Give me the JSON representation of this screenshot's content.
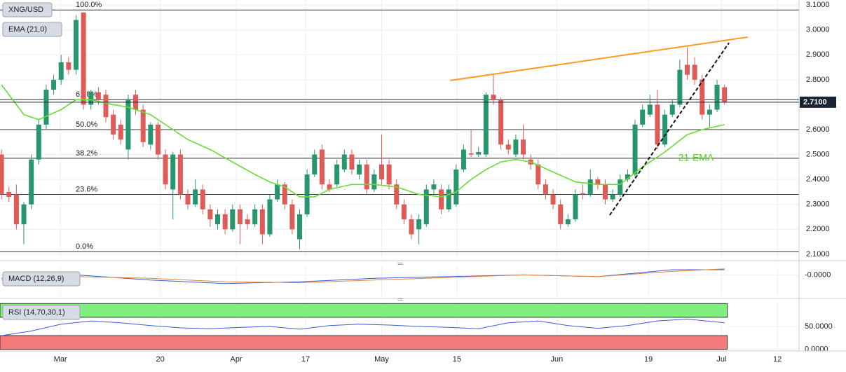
{
  "chart_data": {
    "type": "candlestick",
    "symbol": "XNG/USD",
    "up_color": "#27976b",
    "down_color": "#de5b57",
    "xlim": [
      -0.2,
      107
    ],
    "ylim": [
      2.08,
      3.12
    ],
    "xticks": [
      {
        "value": 7.9,
        "label": "Mar"
      },
      {
        "value": 21.3,
        "label": "20"
      },
      {
        "value": 31.5,
        "label": "Apr"
      },
      {
        "value": 40.8,
        "label": "17"
      },
      {
        "value": 51,
        "label": "May"
      },
      {
        "value": 61.1,
        "label": "15"
      },
      {
        "value": 74.5,
        "label": "Jun"
      },
      {
        "value": 86.8,
        "label": "19"
      },
      {
        "value": 96.6,
        "label": "Jul"
      },
      {
        "value": 104.1,
        "label": "12"
      }
    ],
    "yticks": [
      {
        "value": 3.1,
        "label": "3.1000"
      },
      {
        "value": 3.0,
        "label": "3.0000"
      },
      {
        "value": 2.9,
        "label": "2.9000"
      },
      {
        "value": 2.8,
        "label": "2.8000"
      },
      {
        "value": 2.7,
        "label": "2.7000"
      },
      {
        "value": 2.6,
        "label": "2.6000"
      },
      {
        "value": 2.5,
        "label": "2.5000"
      },
      {
        "value": 2.4,
        "label": "2.4000"
      },
      {
        "value": 2.3,
        "label": "2.3000"
      },
      {
        "value": 2.2,
        "label": "2.2000"
      },
      {
        "value": 2.1,
        "label": "2.1000"
      }
    ],
    "grid": true,
    "open": [
      2.5,
      2.35,
      2.34,
      2.22,
      2.3,
      2.48,
      2.62,
      2.76,
      2.8,
      2.87,
      2.84,
      3.07,
      2.7,
      2.75,
      2.74,
      2.66,
      2.62,
      2.52,
      2.74,
      2.68,
      2.54,
      2.62,
      2.5,
      2.36,
      2.5,
      2.34,
      2.3,
      2.36,
      2.28,
      2.22,
      2.26,
      2.2,
      2.28,
      2.24,
      2.22,
      2.28,
      2.18,
      2.32,
      2.38,
      2.3,
      2.16,
      2.26,
      2.42,
      2.52,
      2.38,
      2.38,
      2.44,
      2.5,
      2.42,
      2.46,
      2.36,
      2.46,
      2.46,
      2.38,
      2.3,
      2.24,
      2.2,
      2.22,
      2.36,
      2.36,
      2.28,
      2.3,
      2.44,
      2.505,
      2.5,
      2.5,
      2.74,
      2.72,
      2.54,
      2.5,
      2.56,
      2.48,
      2.46,
      2.38,
      2.34,
      2.3,
      2.22,
      2.24,
      2.345,
      2.34,
      2.4,
      2.38,
      2.32,
      2.34,
      2.4,
      2.42,
      2.62,
      2.66,
      2.7,
      2.54,
      2.66,
      2.7,
      2.86,
      2.86,
      2.8,
      2.66,
      2.68,
      2.77
    ],
    "high": [
      2.52,
      2.37,
      2.38,
      2.31,
      2.5,
      2.64,
      2.78,
      2.82,
      2.9,
      2.89,
      3.06,
      3.07,
      2.76,
      2.77,
      2.76,
      2.68,
      2.64,
      2.74,
      2.76,
      2.7,
      2.63,
      2.63,
      2.52,
      2.51,
      2.52,
      2.36,
      2.4,
      2.38,
      2.3,
      2.28,
      2.28,
      2.3,
      2.3,
      2.26,
      2.3,
      2.3,
      2.34,
      2.4,
      2.39,
      2.32,
      2.28,
      2.44,
      2.52,
      2.54,
      2.4,
      2.48,
      2.52,
      2.52,
      2.48,
      2.48,
      2.44,
      2.58,
      2.48,
      2.4,
      2.32,
      2.26,
      2.26,
      2.38,
      2.4,
      2.38,
      2.38,
      2.46,
      2.54,
      2.6,
      2.53,
      2.75,
      2.82,
      2.73,
      2.56,
      2.58,
      2.62,
      2.5,
      2.48,
      2.4,
      2.36,
      2.32,
      2.26,
      2.36,
      2.38,
      2.44,
      2.41,
      2.4,
      2.36,
      2.42,
      2.44,
      2.64,
      2.7,
      2.74,
      2.76,
      2.68,
      2.72,
      2.88,
      2.93,
      2.89,
      2.82,
      2.7,
      2.8,
      2.78
    ],
    "low": [
      2.32,
      2.31,
      2.2,
      2.14,
      2.28,
      2.46,
      2.6,
      2.74,
      2.78,
      2.82,
      2.82,
      2.68,
      2.68,
      2.7,
      2.63,
      2.56,
      2.54,
      2.48,
      2.66,
      2.53,
      2.52,
      2.48,
      2.36,
      2.24,
      2.32,
      2.28,
      2.29,
      2.26,
      2.21,
      2.2,
      2.18,
      2.19,
      2.14,
      2.2,
      2.21,
      2.14,
      2.17,
      2.31,
      2.28,
      2.18,
      2.12,
      2.25,
      2.41,
      2.36,
      2.35,
      2.37,
      2.43,
      2.42,
      2.4,
      2.34,
      2.35,
      2.38,
      2.36,
      2.28,
      2.22,
      2.16,
      2.14,
      2.21,
      2.34,
      2.26,
      2.27,
      2.29,
      2.43,
      2.49,
      2.49,
      2.49,
      2.7,
      2.52,
      2.5,
      2.49,
      2.48,
      2.44,
      2.36,
      2.32,
      2.28,
      2.2,
      2.21,
      2.23,
      2.32,
      2.33,
      2.36,
      2.3,
      2.31,
      2.33,
      2.39,
      2.41,
      2.61,
      2.65,
      2.52,
      2.53,
      2.65,
      2.69,
      2.8,
      2.78,
      2.64,
      2.61,
      2.67,
      2.7
    ],
    "close": [
      2.34,
      2.33,
      2.22,
      2.3,
      2.48,
      2.62,
      2.76,
      2.8,
      2.87,
      2.84,
      3.04,
      2.7,
      2.75,
      2.72,
      2.65,
      2.58,
      2.56,
      2.72,
      2.68,
      2.55,
      2.62,
      2.5,
      2.38,
      2.5,
      2.34,
      2.3,
      2.36,
      2.28,
      2.24,
      2.26,
      2.2,
      2.28,
      2.22,
      2.22,
      2.28,
      2.18,
      2.32,
      2.38,
      2.3,
      2.2,
      2.26,
      2.42,
      2.5,
      2.38,
      2.36,
      2.46,
      2.5,
      2.44,
      2.46,
      2.36,
      2.42,
      2.4,
      2.38,
      2.3,
      2.24,
      2.18,
      2.24,
      2.36,
      2.38,
      2.28,
      2.36,
      2.44,
      2.52,
      2.5,
      2.51,
      2.74,
      2.72,
      2.54,
      2.52,
      2.56,
      2.5,
      2.46,
      2.38,
      2.34,
      2.3,
      2.22,
      2.24,
      2.34,
      2.34,
      2.4,
      2.38,
      2.32,
      2.34,
      2.4,
      2.42,
      2.62,
      2.68,
      2.7,
      2.54,
      2.66,
      2.7,
      2.84,
      2.82,
      2.8,
      2.66,
      2.68,
      2.78,
      2.71
    ],
    "ema": {
      "name": "EMA (21,0)",
      "color": "#66dd33",
      "x": [
        0,
        3,
        5,
        8,
        10,
        12,
        15,
        17,
        20,
        22,
        25,
        28,
        31,
        34,
        36,
        38,
        40,
        42,
        44,
        47,
        50,
        53,
        56,
        59,
        61,
        63,
        65,
        67,
        69,
        71,
        74,
        77,
        80,
        83,
        86,
        89,
        92,
        94,
        97
      ],
      "values": [
        2.78,
        2.66,
        2.64,
        2.68,
        2.72,
        2.72,
        2.7,
        2.69,
        2.66,
        2.62,
        2.56,
        2.52,
        2.47,
        2.42,
        2.39,
        2.37,
        2.33,
        2.33,
        2.36,
        2.38,
        2.38,
        2.37,
        2.34,
        2.33,
        2.35,
        2.4,
        2.44,
        2.47,
        2.48,
        2.47,
        2.43,
        2.39,
        2.38,
        2.38,
        2.45,
        2.51,
        2.58,
        2.6,
        2.62
      ]
    },
    "fib_levels": [
      {
        "value": 3.08,
        "label": "100.0%"
      },
      {
        "value": 2.72,
        "label": "61.8%"
      },
      {
        "value": 2.6,
        "label": "50.0%"
      },
      {
        "value": 2.485,
        "label": "38.2%"
      },
      {
        "value": 2.34,
        "label": "23.6%"
      },
      {
        "value": 2.11,
        "label": "0.0%"
      }
    ],
    "trend_lines": [
      {
        "x": [
          60.2,
          100.1
        ],
        "values": [
          2.797,
          2.971
        ],
        "color": "#ff9a1f",
        "dashed": false
      },
      {
        "x": [
          81.6,
          97.6
        ],
        "values": [
          2.257,
          2.948
        ],
        "color": "#111111",
        "dashed": true
      }
    ],
    "annotation": {
      "text": "21-EMA",
      "x": 90.8,
      "value": 2.485,
      "color": "#55cc22"
    },
    "last_price": {
      "value": 2.71,
      "label": "2.7100"
    },
    "macd": {
      "name": "MACD (12,26,9)",
      "ylim": [
        -0.12,
        0.05
      ],
      "yticks": [
        {
          "value": 0,
          "label": "-0.0000"
        }
      ],
      "x": [
        0,
        10,
        20,
        30,
        40,
        50,
        60,
        70,
        80,
        90,
        97
      ],
      "macd": [
        -0.02,
        0.0,
        -0.03,
        -0.05,
        -0.04,
        -0.02,
        -0.01,
        0.0,
        -0.01,
        0.03,
        0.03
      ],
      "signal": [
        -0.03,
        -0.01,
        -0.02,
        -0.04,
        -0.045,
        -0.03,
        -0.015,
        0.0,
        -0.01,
        0.02,
        0.035
      ]
    },
    "rsi": {
      "name": "RSI (14,70,30,1)",
      "ylim": [
        -2,
        102
      ],
      "overbought": 70,
      "oversold": 30,
      "yticks": [
        {
          "value": 50,
          "label": "50.0000"
        },
        {
          "value": 0,
          "label": "0.0000"
        }
      ],
      "x": [
        0,
        4,
        8,
        12,
        16,
        20,
        24,
        28,
        32,
        36,
        40,
        44,
        48,
        52,
        56,
        60,
        64,
        68,
        72,
        76,
        80,
        84,
        88,
        92,
        97
      ],
      "values": [
        30,
        40,
        55,
        62,
        58,
        52,
        47,
        45,
        48,
        50,
        44,
        52,
        55,
        53,
        50,
        48,
        45,
        58,
        62,
        52,
        46,
        52,
        62,
        66,
        58
      ]
    }
  }
}
